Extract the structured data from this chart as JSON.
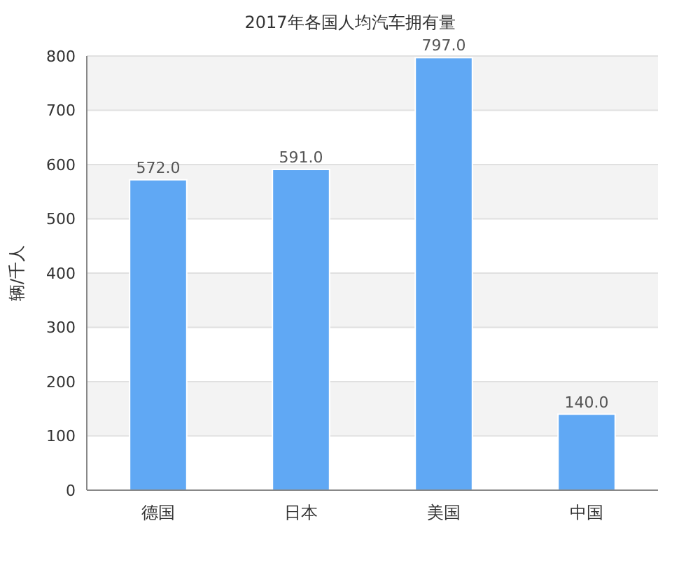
{
  "chart_data": {
    "type": "bar",
    "title": "2017年各国人均汽车拥有量",
    "ylabel": "辆/千人",
    "categories": [
      "德国",
      "日本",
      "美国",
      "中国"
    ],
    "values": [
      572,
      591,
      797,
      140
    ],
    "value_labels": [
      "572.0",
      "591.0",
      "797.0",
      "140.0"
    ],
    "color": "#60a8f4",
    "ylim": [
      0,
      800
    ],
    "yticks": [
      0,
      100,
      200,
      300,
      400,
      500,
      600,
      700,
      800
    ],
    "grid": "y"
  }
}
